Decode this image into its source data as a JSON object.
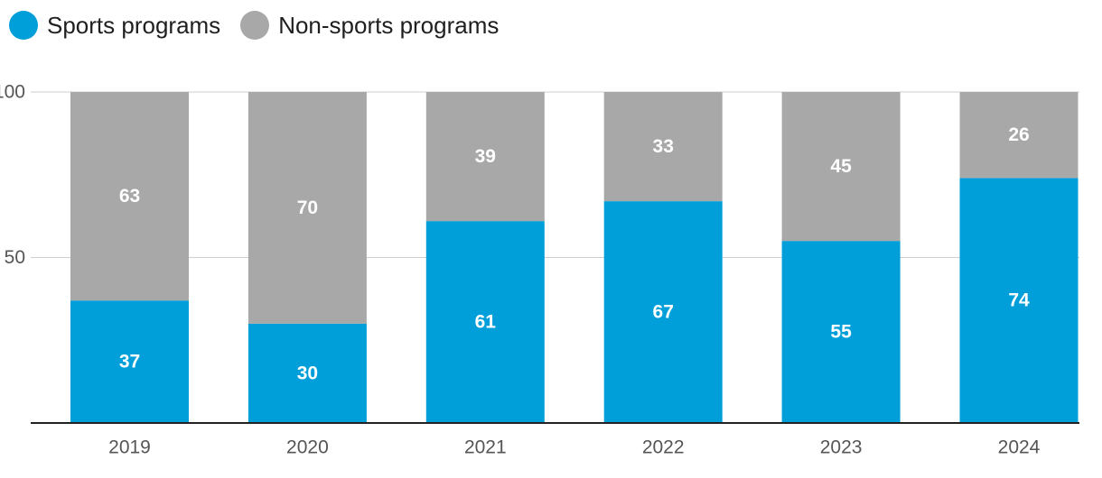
{
  "colors": {
    "sports": "#009fda",
    "non_sports": "#a8a8a8",
    "grid": "#cfcfcf",
    "axis": "#222222",
    "tick_text": "#555555",
    "label_text": "#ffffff"
  },
  "legend": {
    "items": [
      {
        "label": "Sports programs",
        "color": "#009fda"
      },
      {
        "label": "Non-sports programs",
        "color": "#a8a8a8"
      }
    ]
  },
  "chart_data": {
    "type": "bar",
    "stacked": true,
    "title": "",
    "xlabel": "",
    "ylabel": "",
    "ylim": [
      0,
      100
    ],
    "yticks": [
      50,
      100
    ],
    "grid": true,
    "legend_position": "top-left",
    "categories": [
      "2019",
      "2020",
      "2021",
      "2022",
      "2023",
      "2024"
    ],
    "series": [
      {
        "name": "Sports programs",
        "values": [
          37,
          30,
          61,
          67,
          55,
          74
        ]
      },
      {
        "name": "Non-sports programs",
        "values": [
          63,
          70,
          39,
          33,
          45,
          26
        ]
      }
    ]
  }
}
